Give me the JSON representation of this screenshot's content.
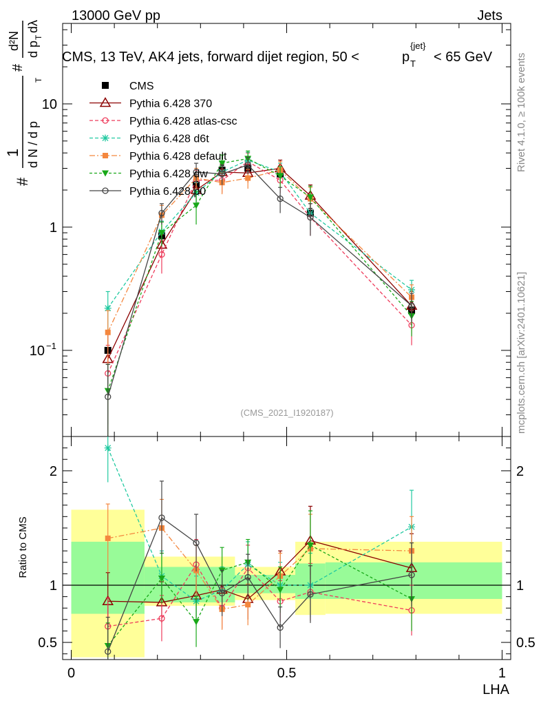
{
  "header": {
    "left": "13000 GeV pp",
    "right": "Jets",
    "title": "CMS, 13 TeV, AK4 jets, forward dijet region, 50 <",
    "title_p": "p",
    "title_sub": "T",
    "title_sup": "{jet}",
    "title_end": "< 65 GeV",
    "watermark": "(CMS_2021_I1920187)",
    "side_top": "Rivet 4.1.0, ≥ 100k events",
    "side_bottom": "mcplots.cern.ch [arXiv:2401.10621]"
  },
  "ylabel_main": {
    "hash": "#",
    "one": "1",
    "denom": "d N / d p",
    "denom_sub": "T",
    "hash2": "#",
    "num": "d²N",
    "den2": "d p",
    "den2_sub": "T",
    "dl": "dλ"
  },
  "ylabel_ratio": "Ratio to CMS",
  "xlabel": "LHA",
  "colors": {
    "cms": "#000000",
    "p370": "#8b0000",
    "atlas": "#ee3b5b",
    "d6t": "#20c9a0",
    "default": "#f4873e",
    "dw": "#18a818",
    "p0": "#444444",
    "band_inner": "#98fb98",
    "band_outer": "#ffff99"
  },
  "chart_data": [
    {
      "id": "main",
      "type": "line",
      "yscale": "log",
      "ylim": [
        0.02,
        45
      ],
      "xlim": [
        -0.02,
        1.02
      ],
      "xticks": [
        0,
        0.5,
        1
      ],
      "yticks": [
        {
          "value": 0.1,
          "label": "10",
          "sup": "−1"
        },
        {
          "value": 1,
          "label": "1",
          "sup": ""
        },
        {
          "value": 10,
          "label": "10",
          "sup": ""
        }
      ],
      "x": [
        0.085,
        0.21,
        0.29,
        0.35,
        0.41,
        0.485,
        0.555,
        0.79
      ],
      "series": [
        {
          "name": "CMS",
          "key": "cms",
          "values": [
            0.1,
            0.85,
            2.2,
            2.9,
            3.0,
            2.7,
            1.3,
            0.21
          ],
          "err": [
            0,
            0.06,
            0.15,
            0.25,
            0.25,
            0.25,
            0.12,
            0.015
          ]
        },
        {
          "name": "Pythia 6.428 370",
          "key": "p370",
          "values": [
            0.085,
            0.72,
            2.0,
            2.8,
            2.75,
            3.0,
            1.8,
            0.23
          ],
          "err": [
            0.06,
            0.15,
            0.4,
            0.45,
            0.45,
            0.5,
            0.4,
            0.07
          ]
        },
        {
          "name": "Pythia 6.428 atlas-csc",
          "key": "atlas",
          "values": [
            0.065,
            0.6,
            2.4,
            2.4,
            3.4,
            2.4,
            1.2,
            0.16
          ],
          "err": [
            0.045,
            0.18,
            0.5,
            0.5,
            0.6,
            0.5,
            0.35,
            0.05
          ]
        },
        {
          "name": "Pythia 6.428 d6t",
          "key": "d6t",
          "values": [
            0.22,
            0.92,
            1.9,
            2.8,
            3.5,
            2.8,
            1.3,
            0.31
          ],
          "err": [
            0.08,
            0.2,
            0.4,
            0.5,
            0.55,
            0.5,
            0.35,
            0.06
          ]
        },
        {
          "name": "Pythia 6.428 default",
          "key": "default",
          "values": [
            0.14,
            1.25,
            2.5,
            2.3,
            2.5,
            2.9,
            1.7,
            0.27
          ],
          "err": [
            0.07,
            0.25,
            0.5,
            0.45,
            0.45,
            0.5,
            0.4,
            0.07
          ]
        },
        {
          "name": "Pythia 6.428 dw",
          "key": "dw",
          "values": [
            0.047,
            0.9,
            1.5,
            3.3,
            3.6,
            2.6,
            1.75,
            0.19
          ],
          "err": [
            0.03,
            0.2,
            0.45,
            0.55,
            0.55,
            0.5,
            0.4,
            0.06
          ]
        },
        {
          "name": "Pythia 6.428 p0",
          "key": "p0",
          "values": [
            0.042,
            1.3,
            2.8,
            2.7,
            3.2,
            1.7,
            1.2,
            0.23
          ],
          "err": [
            0.035,
            0.25,
            0.5,
            0.5,
            0.5,
            0.4,
            0.35,
            0.06
          ]
        }
      ]
    },
    {
      "id": "ratio",
      "type": "line",
      "yscale": "linear",
      "ylim": [
        0.35,
        2.3
      ],
      "xlim": [
        -0.02,
        1.02
      ],
      "xticks": [
        0,
        0.5,
        1
      ],
      "xticklabels": [
        "0",
        "0.5",
        "1"
      ],
      "yticks": [
        {
          "value": 0.5,
          "label": "0.5"
        },
        {
          "value": 1,
          "label": "1"
        },
        {
          "value": 2,
          "label": "2"
        }
      ],
      "bands": [
        {
          "x0": 0.0,
          "x1": 0.17,
          "inner": [
            0.75,
            1.38
          ],
          "outer": [
            0.37,
            1.66
          ]
        },
        {
          "x0": 0.17,
          "x1": 0.38,
          "inner": [
            0.85,
            1.16
          ],
          "outer": [
            0.82,
            1.25
          ]
        },
        {
          "x0": 0.38,
          "x1": 0.52,
          "inner": [
            0.93,
            1.09
          ],
          "outer": [
            0.87,
            1.16
          ]
        },
        {
          "x0": 0.52,
          "x1": 0.59,
          "inner": [
            0.88,
            1.19
          ],
          "outer": [
            0.74,
            1.38
          ]
        },
        {
          "x0": 0.59,
          "x1": 1.0,
          "inner": [
            0.88,
            1.2
          ],
          "outer": [
            0.75,
            1.38
          ]
        }
      ],
      "x": [
        0.085,
        0.21,
        0.29,
        0.35,
        0.41,
        0.485,
        0.555,
        0.79
      ],
      "series": [
        {
          "name": "Pythia 6.428 370",
          "key": "p370",
          "values": [
            0.86,
            0.85,
            0.91,
            0.96,
            0.88,
            1.12,
            1.39,
            1.15
          ],
          "err": [
            0.25,
            0.18,
            0.2,
            0.18,
            0.18,
            0.18,
            0.3,
            0.3
          ]
        },
        {
          "name": "Pythia 6.428 atlas-csc",
          "key": "atlas",
          "values": [
            0.64,
            0.71,
            1.18,
            0.8,
            1.15,
            0.86,
            0.94,
            0.78
          ],
          "err": [
            0.25,
            0.2,
            0.22,
            0.18,
            0.2,
            0.18,
            0.25,
            0.22
          ]
        },
        {
          "name": "Pythia 6.428 d6t",
          "key": "d6t",
          "values": [
            2.2,
            1.08,
            0.86,
            0.96,
            1.18,
            1.0,
            1.0,
            1.51
          ],
          "err": [
            0.3,
            0.22,
            0.22,
            0.2,
            0.2,
            0.2,
            0.28,
            0.32
          ]
        },
        {
          "name": "Pythia 6.428 default",
          "key": "default",
          "values": [
            1.41,
            1.5,
            1.13,
            0.79,
            0.83,
            1.08,
            1.32,
            1.3
          ],
          "err": [
            0.3,
            0.25,
            0.22,
            0.18,
            0.18,
            0.2,
            0.3,
            0.3
          ]
        },
        {
          "name": "Pythia 6.428 dw",
          "key": "dw",
          "values": [
            0.47,
            1.06,
            0.68,
            1.13,
            1.2,
            0.96,
            1.35,
            0.88
          ],
          "err": [
            0.2,
            0.22,
            0.22,
            0.2,
            0.2,
            0.2,
            0.3,
            0.28
          ]
        },
        {
          "name": "Pythia 6.428 p0",
          "key": "p0",
          "values": [
            0.42,
            1.59,
            1.37,
            0.93,
            1.07,
            0.63,
            0.92,
            1.09
          ],
          "err": [
            0.3,
            0.32,
            0.25,
            0.2,
            0.2,
            0.18,
            0.25,
            0.28
          ]
        }
      ]
    }
  ]
}
